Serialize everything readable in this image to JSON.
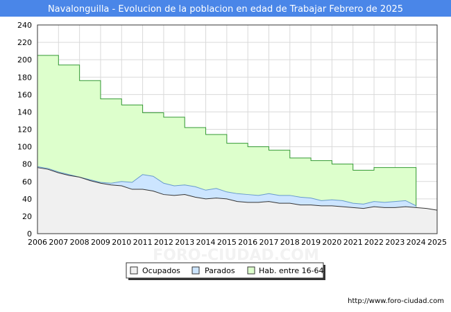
{
  "chart_data": {
    "type": "area",
    "title": "Navalonguilla - Evolucion de la poblacion en edad de Trabajar Febrero de 2025",
    "xlabel": "",
    "ylabel": "",
    "xlim": [
      2006,
      2025
    ],
    "ylim": [
      0,
      240
    ],
    "yticks": [
      0,
      20,
      40,
      60,
      80,
      100,
      120,
      140,
      160,
      180,
      200,
      220,
      240
    ],
    "xticks": [
      2006,
      2007,
      2008,
      2009,
      2010,
      2011,
      2012,
      2013,
      2014,
      2015,
      2016,
      2017,
      2018,
      2019,
      2020,
      2021,
      2022,
      2023,
      2024,
      2025
    ],
    "grid": true,
    "legend_position": "bottom-center",
    "series": [
      {
        "name": "Ocupados",
        "key": "ocupados",
        "color": "#f0f0f0",
        "line_color": "#333333",
        "x": [
          2006,
          2006.5,
          2007,
          2007.5,
          2008,
          2008.5,
          2009,
          2009.5,
          2010,
          2010.5,
          2011,
          2011.5,
          2012,
          2012.5,
          2013,
          2013.5,
          2014,
          2014.5,
          2015,
          2015.5,
          2016,
          2016.5,
          2017,
          2017.5,
          2018,
          2018.5,
          2019,
          2019.5,
          2020,
          2020.5,
          2021,
          2021.5,
          2022,
          2022.5,
          2023,
          2023.5,
          2024,
          2024.5,
          2025
        ],
        "values": [
          76,
          74,
          70,
          67,
          65,
          61,
          58,
          56,
          55,
          51,
          51,
          49,
          45,
          44,
          45,
          42,
          40,
          41,
          40,
          37,
          36,
          36,
          37,
          35,
          35,
          33,
          33,
          32,
          32,
          31,
          30,
          29,
          31,
          30,
          30,
          31,
          30,
          29,
          27
        ]
      },
      {
        "name": "Parados",
        "key": "parados",
        "color": "#cce5ff",
        "line_color": "#6699cc",
        "x": [
          2006,
          2006.5,
          2007,
          2007.5,
          2008,
          2008.5,
          2009,
          2009.5,
          2010,
          2010.5,
          2011,
          2011.5,
          2012,
          2012.5,
          2013,
          2013.5,
          2014,
          2014.5,
          2015,
          2015.5,
          2016,
          2016.5,
          2017,
          2017.5,
          2018,
          2018.5,
          2019,
          2019.5,
          2020,
          2020.5,
          2021,
          2021.5,
          2022,
          2022.5,
          2023,
          2023.5,
          2024
        ],
        "values": [
          77,
          75,
          71,
          68,
          65,
          62,
          59,
          58,
          60,
          59,
          68,
          66,
          58,
          55,
          56,
          54,
          50,
          52,
          48,
          46,
          45,
          44,
          46,
          44,
          44,
          42,
          41,
          38,
          39,
          38,
          35,
          34,
          37,
          36,
          37,
          38,
          32
        ]
      },
      {
        "name": "Hab. entre 16-64",
        "key": "hab",
        "color": "#ddffcc",
        "line_color": "#339933",
        "step": true,
        "x": [
          2006,
          2007,
          2008,
          2009,
          2010,
          2011,
          2012,
          2013,
          2014,
          2015,
          2016,
          2017,
          2018,
          2019,
          2020,
          2021,
          2022,
          2023
        ],
        "values": [
          205,
          194,
          176,
          155,
          148,
          139,
          134,
          122,
          114,
          104,
          100,
          96,
          87,
          84,
          80,
          73,
          76,
          76
        ],
        "end_x": 2024
      }
    ],
    "url": "http://www.foro-ciudad.com",
    "watermark": "FORO-CIUDAD.COM"
  }
}
